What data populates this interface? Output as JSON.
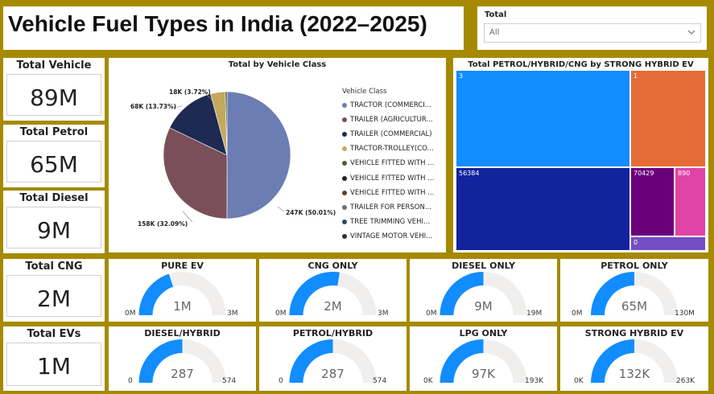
{
  "title": "Vehicle Fuel Types in India (2022–2025)",
  "slicer": {
    "label": "Total",
    "value": "All",
    "icon": "chevron-down-icon"
  },
  "kpis": [
    {
      "label": "Total Vehicle",
      "value": "89M"
    },
    {
      "label": "Total Petrol",
      "value": "65M"
    },
    {
      "label": "Total Diesel",
      "value": "9M"
    },
    {
      "label": "Total CNG",
      "value": "2M"
    },
    {
      "label": "Total EVs",
      "value": "1M"
    }
  ],
  "chart_data": [
    {
      "type": "pie",
      "title": "Total by Vehicle Class",
      "legend_title": "Vehicle Class",
      "legend_placement": "right",
      "legend": [
        {
          "name": "TRACTOR (COMMERCI...",
          "color": "#6b7db3"
        },
        {
          "name": "TRAILER (AGRICULTUR...",
          "color": "#7b4f5a"
        },
        {
          "name": "TRAILER (COMMERCIAL)",
          "color": "#1e2a52"
        },
        {
          "name": "TRACTOR-TROLLEY(CO...",
          "color": "#c4a95c"
        },
        {
          "name": "VEHICLE FITTED WITH ...",
          "color": "#4c6128"
        },
        {
          "name": "VEHICLE FITTED WITH ...",
          "color": "#222222"
        },
        {
          "name": "VEHICLE FITTED WITH ...",
          "color": "#5a4030"
        },
        {
          "name": "TRAILER FOR PERSON...",
          "color": "#6f6f6f"
        },
        {
          "name": "TREE TRIMMING VEHI...",
          "color": "#2f4a5a"
        },
        {
          "name": "VINTAGE MOTOR VEHI...",
          "color": "#333333"
        }
      ],
      "slices": [
        {
          "label": "247K (50.01%)",
          "percent": 50.01,
          "color": "#6b7db3"
        },
        {
          "label": "158K (32.09%)",
          "percent": 32.09,
          "color": "#7b4f5a"
        },
        {
          "label": "68K (13.73%)",
          "percent": 13.73,
          "color": "#1e2a52"
        },
        {
          "label": "18K (3.72%)",
          "percent": 3.72,
          "color": "#c4a95c"
        },
        {
          "label": "",
          "percent": 0.45,
          "color": "#4c6128"
        }
      ]
    },
    {
      "type": "treemap",
      "title": "Total PETROL/HYBRID/CNG by STRONG HYBRID EV",
      "tiles": [
        {
          "label": "3",
          "color": "#118dff"
        },
        {
          "label": "1",
          "color": "#e66c37"
        },
        {
          "label": "56384",
          "color": "#12239e"
        },
        {
          "label": "70429",
          "color": "#6b007b"
        },
        {
          "label": "890",
          "color": "#e044a7"
        },
        {
          "label": "0",
          "color": "#744ec2"
        }
      ]
    },
    {
      "type": "gauge",
      "gauges": [
        {
          "title": "PURE EV",
          "value_label": "1M",
          "min": "0M",
          "max": "3M",
          "fraction": 0.4
        },
        {
          "title": "CNG ONLY",
          "value_label": "2M",
          "min": "0M",
          "max": "3M",
          "fraction": 0.55
        },
        {
          "title": "DIESEL ONLY",
          "value_label": "9M",
          "min": "0M",
          "max": "19M",
          "fraction": 0.5
        },
        {
          "title": "PETROL ONLY",
          "value_label": "65M",
          "min": "0M",
          "max": "130M",
          "fraction": 0.5
        },
        {
          "title": "DIESEL/HYBRID",
          "value_label": "287",
          "min": "0",
          "max": "574",
          "fraction": 0.5
        },
        {
          "title": "PETROL/HYBRID",
          "value_label": "287",
          "min": "0",
          "max": "574",
          "fraction": 0.5
        },
        {
          "title": "LPG ONLY",
          "value_label": "97K",
          "min": "0K",
          "max": "193K",
          "fraction": 0.5
        },
        {
          "title": "STRONG HYBRID EV",
          "value_label": "132K",
          "min": "0K",
          "max": "263K",
          "fraction": 0.5
        }
      ],
      "fill_color": "#118dff",
      "track_color": "#f0efee"
    }
  ]
}
